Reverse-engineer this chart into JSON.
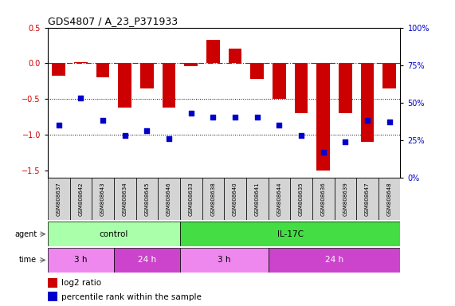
{
  "title": "GDS4807 / A_23_P371933",
  "samples": [
    "GSM808637",
    "GSM808642",
    "GSM808643",
    "GSM808634",
    "GSM808645",
    "GSM808646",
    "GSM808633",
    "GSM808638",
    "GSM808640",
    "GSM808641",
    "GSM808644",
    "GSM808635",
    "GSM808636",
    "GSM808639",
    "GSM808647",
    "GSM808648"
  ],
  "log2_ratio": [
    -0.18,
    0.02,
    -0.2,
    -0.62,
    -0.35,
    -0.62,
    -0.04,
    0.33,
    0.2,
    -0.22,
    -0.5,
    -0.7,
    -1.5,
    -0.7,
    -1.1,
    -0.35
  ],
  "percentile": [
    35,
    53,
    38,
    28,
    31,
    26,
    43,
    40,
    40,
    40,
    35,
    28,
    17,
    24,
    38,
    37
  ],
  "ylim_left": [
    -1.6,
    0.5
  ],
  "ylim_right": [
    0,
    100
  ],
  "yticks_left": [
    0.5,
    0,
    -0.5,
    -1.0,
    -1.5
  ],
  "yticks_right": [
    100,
    75,
    50,
    25,
    0
  ],
  "bar_color": "#cc0000",
  "dot_color": "#0000cc",
  "hline_color": "#cc0000",
  "dotted_line_color": "#000000",
  "agent_control_color": "#aaffaa",
  "agent_il17c_color": "#44dd44",
  "time_3h_color": "#ee88ee",
  "time_24h_color": "#cc44cc",
  "agent_label": "agent",
  "time_label": "time",
  "control_label": "control",
  "il17c_label": "IL-17C",
  "time_3h_label": "3 h",
  "time_24h_label": "24 h",
  "legend_bar_label": "log2 ratio",
  "legend_dot_label": "percentile rank within the sample",
  "control_samples": 6,
  "control_3h_samples": 3,
  "control_24h_samples": 3,
  "il17c_3h_samples": 4,
  "il17c_24h_samples": 6
}
